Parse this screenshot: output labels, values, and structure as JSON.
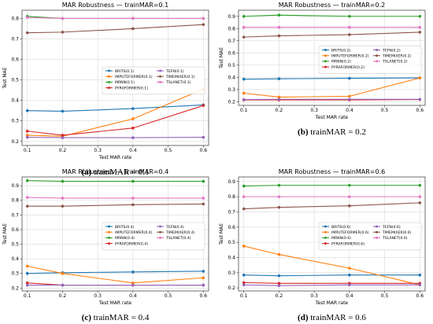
{
  "chart_data": [
    {
      "type": "line",
      "title": "MAR Robustness — trainMAR=0.1",
      "xlabel": "Test MAR rate",
      "ylabel": "Test MAE",
      "x": [
        0.1,
        0.2,
        0.4,
        0.6
      ],
      "xticks": [
        "0.1",
        "0.2",
        "0.3",
        "0.4",
        "0.5",
        "0.6"
      ],
      "ylim": [
        0.18,
        0.84
      ],
      "yticks": [
        0.2,
        0.3,
        0.4,
        0.5,
        0.6,
        0.7,
        0.8
      ],
      "caption_label": "(a)",
      "caption_text": "trainMAR = 0.1",
      "legend_position": "center-right",
      "series": [
        {
          "name": "BRITS(0.1)",
          "values": [
            0.35,
            0.347,
            0.36,
            0.378
          ]
        },
        {
          "name": "IMPUTEFORMER(0.1)",
          "values": [
            0.23,
            0.225,
            0.31,
            0.455
          ]
        },
        {
          "name": "MRNN(0.1)",
          "values": [
            0.81,
            0.8,
            0.8,
            0.8
          ]
        },
        {
          "name": "PYRAFORMER(0.1)",
          "values": [
            0.25,
            0.23,
            0.265,
            0.375
          ]
        },
        {
          "name": "TEFN(0.1)",
          "values": [
            0.22,
            0.218,
            0.218,
            0.22
          ]
        },
        {
          "name": "TIMEMIXER(0.1)",
          "values": [
            0.73,
            0.733,
            0.75,
            0.77
          ]
        },
        {
          "name": "TSLANET(0.1)",
          "values": [
            0.805,
            0.8,
            0.8,
            0.8
          ]
        }
      ]
    },
    {
      "type": "line",
      "title": "MAR Robustness — trainMAR=0.2",
      "xlabel": "Test MAR rate",
      "ylabel": "Test MAE",
      "x": [
        0.1,
        0.2,
        0.4,
        0.6
      ],
      "xticks": [
        "0.1",
        "0.2",
        "0.3",
        "0.4",
        "0.5",
        "0.6"
      ],
      "ylim": [
        0.17,
        0.95
      ],
      "yticks": [
        0.2,
        0.3,
        0.4,
        0.5,
        0.6,
        0.7,
        0.8,
        0.9
      ],
      "caption_label": "(b)",
      "caption_text": "trainMAR = 0.2",
      "legend_position": "center-right",
      "series": [
        {
          "name": "BRITS(0.2)",
          "values": [
            0.385,
            0.388,
            0.392,
            0.395
          ]
        },
        {
          "name": "IMPUTEFORMER(0.2)",
          "values": [
            0.27,
            0.238,
            0.245,
            0.395
          ]
        },
        {
          "name": "MRNN(0.2)",
          "values": [
            0.9,
            0.91,
            0.9,
            0.9
          ]
        },
        {
          "name": "PYRAFORMER(0.2)",
          "values": [
            0.215,
            0.215,
            0.215,
            0.218
          ]
        },
        {
          "name": "TEFN(0.2)",
          "values": [
            0.218,
            0.22,
            0.22,
            0.22
          ]
        },
        {
          "name": "TIMEMIXER(0.2)",
          "values": [
            0.73,
            0.74,
            0.75,
            0.77
          ]
        },
        {
          "name": "TSLANET(0.2)",
          "values": [
            0.81,
            0.81,
            0.81,
            0.81
          ]
        }
      ]
    },
    {
      "type": "line",
      "title": "MAR Robustness — trainMAR=0.4",
      "xlabel": "Test MAR rate",
      "ylabel": "Test MAE",
      "x": [
        0.1,
        0.2,
        0.4,
        0.6
      ],
      "xticks": [
        "0.1",
        "0.2",
        "0.3",
        "0.4",
        "0.5",
        "0.6"
      ],
      "ylim": [
        0.18,
        0.96
      ],
      "yticks": [
        0.2,
        0.3,
        0.4,
        0.5,
        0.6,
        0.7,
        0.8,
        0.9
      ],
      "caption_label": "(c)",
      "caption_text": "trainMAR = 0.4",
      "legend_position": "center-right",
      "series": [
        {
          "name": "BRITS(0.4)",
          "values": [
            0.3,
            0.305,
            0.31,
            0.315
          ]
        },
        {
          "name": "IMPUTEFORMER(0.4)",
          "values": [
            0.35,
            0.3,
            0.235,
            0.27
          ]
        },
        {
          "name": "MRNN(0.4)",
          "values": [
            0.935,
            0.93,
            0.93,
            0.93
          ]
        },
        {
          "name": "PYRAFORMER(0.4)",
          "values": [
            0.235,
            0.22,
            0.22,
            0.22
          ]
        },
        {
          "name": "TEFN(0.4)",
          "values": [
            0.22,
            0.22,
            0.22,
            0.22
          ]
        },
        {
          "name": "TIMEMIXER(0.4)",
          "values": [
            0.76,
            0.76,
            0.77,
            0.775
          ]
        },
        {
          "name": "TSLANET(0.4)",
          "values": [
            0.82,
            0.815,
            0.815,
            0.815
          ]
        }
      ]
    },
    {
      "type": "line",
      "title": "MAR Robustness — trainMAR=0.6",
      "xlabel": "Test MAR rate",
      "ylabel": "Test MAE",
      "x": [
        0.1,
        0.2,
        0.4,
        0.6
      ],
      "xticks": [
        "0.1",
        "0.2",
        "0.3",
        "0.4",
        "0.5",
        "0.6"
      ],
      "ylim": [
        0.18,
        0.93
      ],
      "yticks": [
        0.2,
        0.3,
        0.4,
        0.5,
        0.6,
        0.7,
        0.8,
        0.9
      ],
      "caption_label": "(d)",
      "caption_text": "trainMAR = 0.6",
      "legend_position": "center-right",
      "series": [
        {
          "name": "BRITS(0.6)",
          "values": [
            0.285,
            0.28,
            0.285,
            0.285
          ]
        },
        {
          "name": "IMPUTEFORMER(0.6)",
          "values": [
            0.475,
            0.42,
            0.33,
            0.22
          ]
        },
        {
          "name": "MRNN(0.6)",
          "values": [
            0.87,
            0.875,
            0.875,
            0.875
          ]
        },
        {
          "name": "PYRAFORMER(0.6)",
          "values": [
            0.235,
            0.23,
            0.23,
            0.23
          ]
        },
        {
          "name": "TEFN(0.6)",
          "values": [
            0.22,
            0.215,
            0.22,
            0.22
          ]
        },
        {
          "name": "TIMEMIXER(0.6)",
          "values": [
            0.72,
            0.73,
            0.74,
            0.76
          ]
        },
        {
          "name": "TSLANET(0.6)",
          "values": [
            0.8,
            0.8,
            0.8,
            0.8
          ]
        }
      ]
    }
  ],
  "colors": [
    "#1f77b4",
    "#ff7f0e",
    "#2ca02c",
    "#d62728",
    "#9467bd",
    "#8c564b",
    "#e377c2"
  ]
}
